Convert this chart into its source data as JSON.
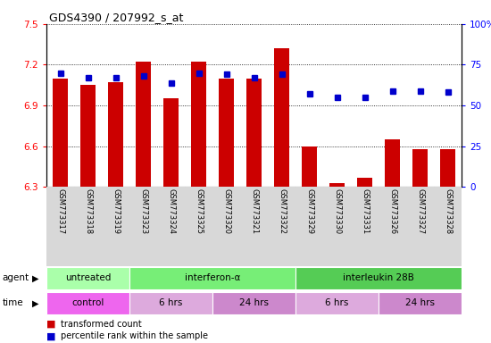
{
  "title": "GDS4390 / 207992_s_at",
  "samples": [
    "GSM773317",
    "GSM773318",
    "GSM773319",
    "GSM773323",
    "GSM773324",
    "GSM773325",
    "GSM773320",
    "GSM773321",
    "GSM773322",
    "GSM773329",
    "GSM773330",
    "GSM773331",
    "GSM773326",
    "GSM773327",
    "GSM773328"
  ],
  "transformed_count": [
    7.1,
    7.05,
    7.07,
    7.22,
    6.95,
    7.22,
    7.1,
    7.1,
    7.32,
    6.6,
    6.33,
    6.37,
    6.65,
    6.58,
    6.58
  ],
  "percentile_rank": [
    70,
    67,
    67,
    68,
    64,
    70,
    69,
    67,
    69,
    57,
    55,
    55,
    59,
    59,
    58
  ],
  "ylim_left": [
    6.3,
    7.5
  ],
  "ylim_right": [
    0,
    100
  ],
  "yticks_left": [
    6.3,
    6.6,
    6.9,
    7.2,
    7.5
  ],
  "yticks_right": [
    0,
    25,
    50,
    75,
    100
  ],
  "ytick_labels_left": [
    "6.3",
    "6.6",
    "6.9",
    "7.2",
    "7.5"
  ],
  "ytick_labels_right": [
    "0",
    "25",
    "50",
    "75",
    "100%"
  ],
  "bar_color": "#cc0000",
  "dot_color": "#0000cc",
  "agent_groups": [
    {
      "label": "untreated",
      "start": 0,
      "end": 3,
      "color": "#aaffaa"
    },
    {
      "label": "interferon-α",
      "start": 3,
      "end": 9,
      "color": "#77ee77"
    },
    {
      "label": "interleukin 28B",
      "start": 9,
      "end": 15,
      "color": "#55cc55"
    }
  ],
  "time_groups": [
    {
      "label": "control",
      "start": 0,
      "end": 3,
      "color": "#ee66ee"
    },
    {
      "label": "6 hrs",
      "start": 3,
      "end": 6,
      "color": "#ddaadd"
    },
    {
      "label": "24 hrs",
      "start": 6,
      "end": 9,
      "color": "#cc88cc"
    },
    {
      "label": "6 hrs",
      "start": 9,
      "end": 12,
      "color": "#ddaadd"
    },
    {
      "label": "24 hrs",
      "start": 12,
      "end": 15,
      "color": "#cc88cc"
    }
  ]
}
